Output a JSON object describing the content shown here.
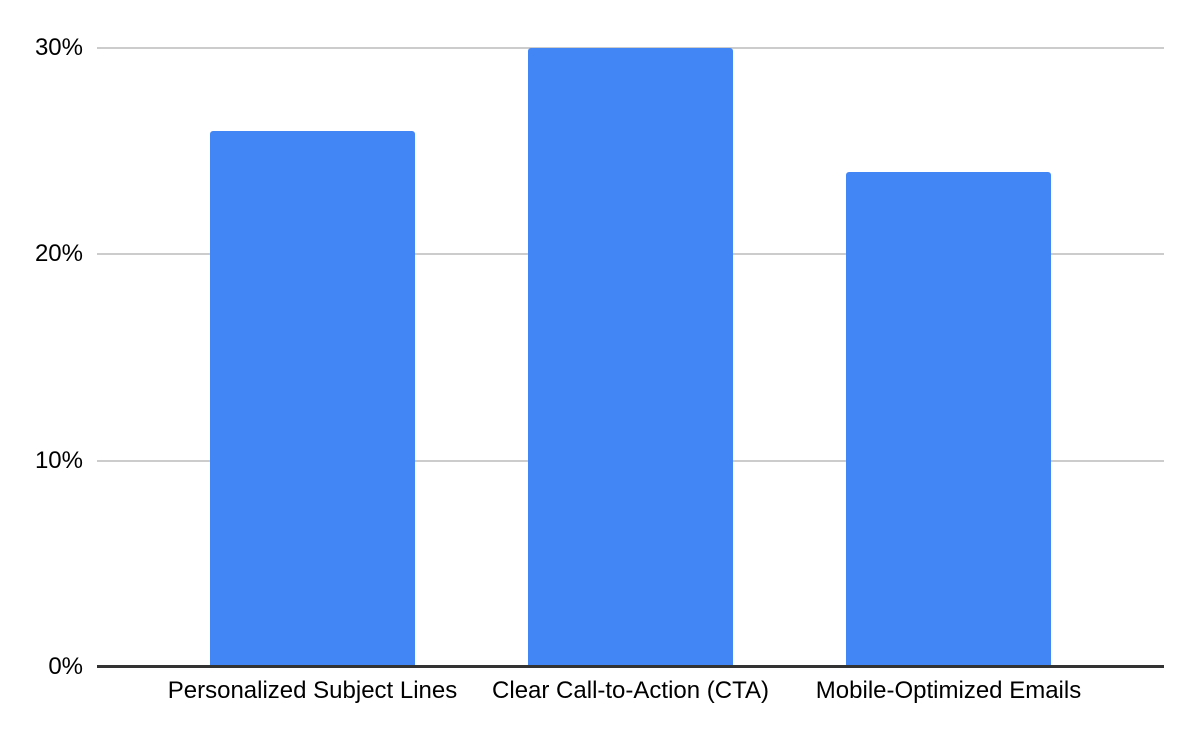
{
  "chart_data": {
    "type": "bar",
    "title": "",
    "xlabel": "",
    "ylabel": "",
    "categories": [
      "Personalized Subject Lines",
      "Clear Call-to-Action (CTA)",
      "Mobile-Optimized Emails"
    ],
    "values": [
      26,
      30,
      24
    ],
    "unit": "%",
    "ylim": [
      0,
      30
    ],
    "y_ticks": [
      0,
      10,
      20,
      30
    ],
    "y_tick_labels": [
      "0%",
      "10%",
      "20%",
      "30%"
    ],
    "grid": true,
    "legend": "none",
    "bar_color": "#4285f4",
    "gridline_color": "#cccccc",
    "axis_color": "#333333",
    "label_color": "#000000",
    "background": "#ffffff"
  }
}
